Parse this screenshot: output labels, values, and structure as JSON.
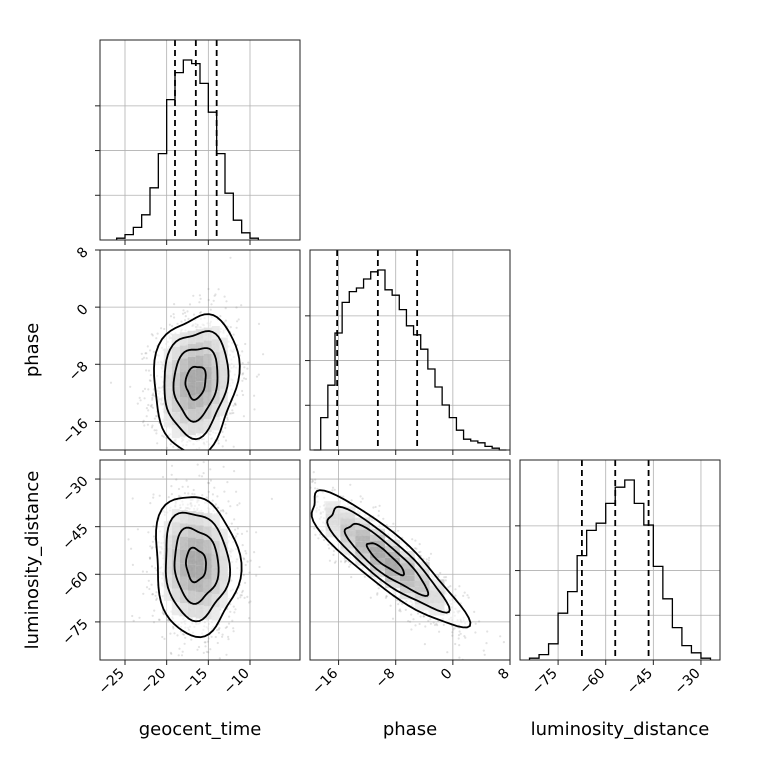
{
  "chart_data": {
    "type": "corner",
    "parameters": [
      "geocent_time",
      "phase",
      "luminosity_distance"
    ],
    "ranges": {
      "geocent_time": [
        -28,
        -4
      ],
      "phase": [
        -20,
        8
      ],
      "luminosity_distance": [
        -87,
        -24
      ]
    },
    "ticks": {
      "geocent_time": [
        -25,
        -20,
        -15,
        -10
      ],
      "phase": [
        -16,
        -8,
        0,
        8
      ],
      "luminosity_distance": [
        -75,
        -60,
        -45,
        -30
      ]
    },
    "quantiles": {
      "geocent_time": [
        -19.0,
        -16.5,
        -14.0
      ],
      "phase": [
        -16.2,
        -10.5,
        -5.0
      ],
      "luminosity_distance": [
        -67.5,
        -57.0,
        -46.5
      ]
    },
    "histograms": {
      "geocent_time": {
        "edges": [
          -26,
          -25,
          -24,
          -23,
          -22,
          -21,
          -20,
          -19,
          -18,
          -17,
          -16,
          -15,
          -14,
          -13,
          -12,
          -11,
          -10,
          -9
        ],
        "counts": [
          0.01,
          0.03,
          0.07,
          0.14,
          0.29,
          0.48,
          0.78,
          0.93,
          1.0,
          0.98,
          0.87,
          0.71,
          0.48,
          0.26,
          0.11,
          0.04,
          0.01
        ]
      },
      "phase": {
        "edges": [
          -19.5,
          -18.5,
          -17.5,
          -16.5,
          -15.5,
          -14.5,
          -13.5,
          -12.5,
          -11.5,
          -10.5,
          -9.5,
          -8.5,
          -7.5,
          -6.5,
          -5.5,
          -4.5,
          -3.5,
          -2.5,
          -1.5,
          -0.5,
          0.5,
          1.5,
          2.5,
          3.5,
          4.5,
          5.5,
          6.5,
          7.5
        ],
        "counts": [
          0.0,
          0.18,
          0.36,
          0.65,
          0.82,
          0.88,
          0.9,
          0.95,
          0.99,
          1.0,
          0.89,
          0.86,
          0.78,
          0.69,
          0.64,
          0.56,
          0.45,
          0.35,
          0.25,
          0.18,
          0.11,
          0.06,
          0.05,
          0.04,
          0.02,
          0.01,
          0.0
        ]
      },
      "luminosity_distance": {
        "edges": [
          -84,
          -81,
          -78,
          -75,
          -72,
          -69,
          -66,
          -63,
          -60,
          -57,
          -54,
          -51,
          -48,
          -45,
          -42,
          -39,
          -36,
          -33,
          -30,
          -27
        ],
        "counts": [
          0.01,
          0.03,
          0.09,
          0.26,
          0.38,
          0.58,
          0.72,
          0.76,
          0.87,
          0.96,
          1.0,
          0.87,
          0.75,
          0.52,
          0.34,
          0.18,
          0.08,
          0.04,
          0.01
        ]
      }
    },
    "pairs": [
      {
        "x": "geocent_time",
        "y": "phase",
        "center": [
          -16.5,
          -10.5
        ],
        "sigma": [
          2.4,
          4.6
        ],
        "corr": 0.12
      },
      {
        "x": "geocent_time",
        "y": "luminosity_distance",
        "center": [
          -16.5,
          -57.0
        ],
        "sigma": [
          2.4,
          10.5
        ],
        "corr": -0.08
      },
      {
        "x": "phase",
        "y": "luminosity_distance",
        "center": [
          -9.5,
          -55.0
        ],
        "sigma": [
          5.2,
          10.0
        ],
        "corr": -0.88
      }
    ]
  }
}
